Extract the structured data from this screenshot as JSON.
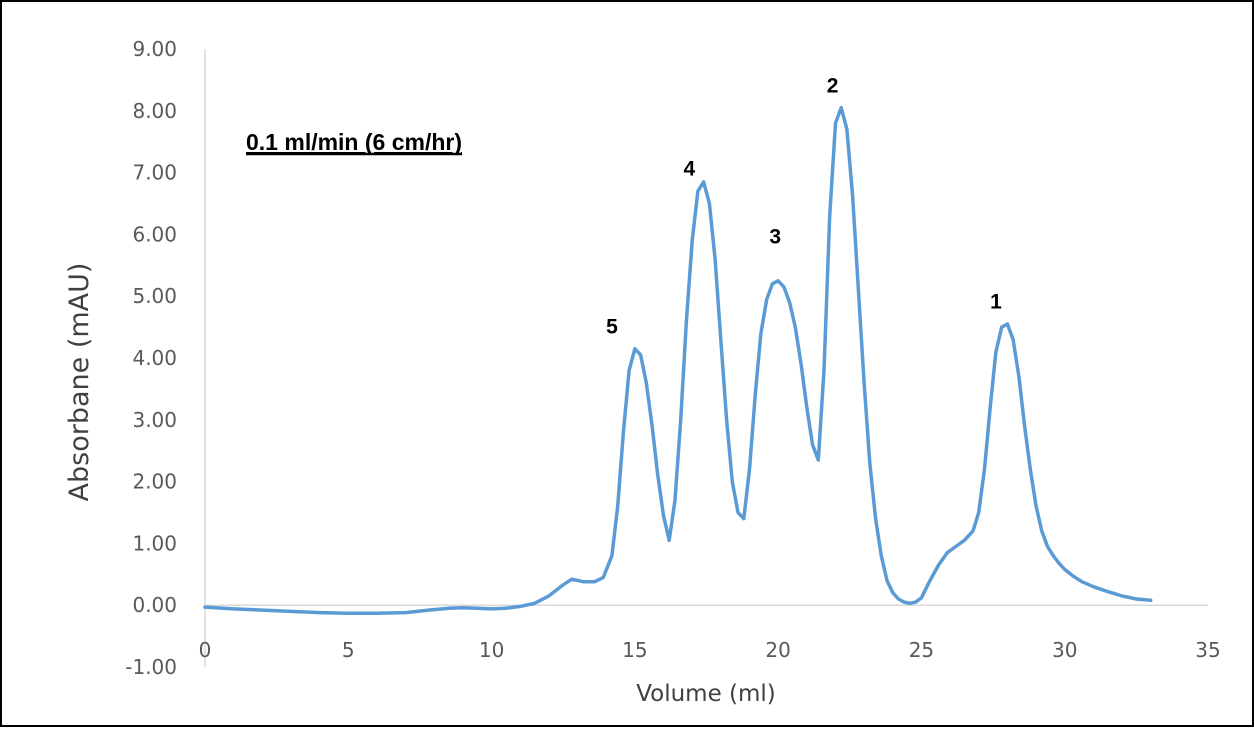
{
  "chart_data": {
    "type": "line",
    "title": "",
    "annotation": "0.1 ml/min (6 cm/hr)",
    "xlabel": "Volume (ml)",
    "ylabel": "Absorbane (mAU)",
    "xlim": [
      0,
      35
    ],
    "ylim": [
      -1,
      9
    ],
    "x_ticks": [
      0,
      5,
      10,
      15,
      20,
      25,
      30,
      35
    ],
    "y_ticks": [
      -1,
      0,
      1,
      2,
      3,
      4,
      5,
      6,
      7,
      8,
      9
    ],
    "x_tick_labels": [
      "0",
      "5",
      "10",
      "15",
      "20",
      "25",
      "30",
      "35"
    ],
    "y_tick_labels": [
      "-1.00",
      "0.00",
      "1.00",
      "2.00",
      "3.00",
      "4.00",
      "5.00",
      "6.00",
      "7.00",
      "8.00",
      "9.00"
    ],
    "grid": false,
    "line_color": "#5B9BD5",
    "peak_labels": [
      {
        "text": "5",
        "x": 14.2,
        "y": 4.4
      },
      {
        "text": "4",
        "x": 16.9,
        "y": 6.95
      },
      {
        "text": "3",
        "x": 19.9,
        "y": 5.85
      },
      {
        "text": "2",
        "x": 21.9,
        "y": 8.3
      },
      {
        "text": "1",
        "x": 27.6,
        "y": 4.8
      }
    ],
    "series": [
      {
        "x": [
          0,
          1,
          2,
          3,
          4,
          5,
          6,
          7,
          7.8,
          8.5,
          9,
          9.5,
          10,
          10.5,
          11,
          11.5,
          12,
          12.5,
          12.8,
          13.2,
          13.6,
          13.9,
          14.2,
          14.4,
          14.6,
          14.8,
          15,
          15.2,
          15.4,
          15.6,
          15.8,
          16,
          16.2,
          16.4,
          16.6,
          16.8,
          17,
          17.2,
          17.4,
          17.6,
          17.8,
          18,
          18.2,
          18.4,
          18.6,
          18.8,
          19,
          19.2,
          19.4,
          19.6,
          19.8,
          20,
          20.2,
          20.4,
          20.6,
          20.8,
          21,
          21.2,
          21.4,
          21.6,
          21.8,
          22,
          22.2,
          22.4,
          22.6,
          22.8,
          23,
          23.2,
          23.4,
          23.6,
          23.8,
          24,
          24.2,
          24.4,
          24.6,
          24.8,
          25,
          25.3,
          25.6,
          25.9,
          26.2,
          26.5,
          26.8,
          27,
          27.2,
          27.4,
          27.6,
          27.8,
          28,
          28.2,
          28.4,
          28.6,
          28.8,
          29,
          29.2,
          29.4,
          29.6,
          29.8,
          30,
          30.3,
          30.6,
          31,
          31.5,
          32,
          32.5,
          33
        ],
        "y": [
          -0.03,
          -0.06,
          -0.08,
          -0.1,
          -0.12,
          -0.13,
          -0.13,
          -0.12,
          -0.08,
          -0.05,
          -0.04,
          -0.05,
          -0.06,
          -0.05,
          -0.02,
          0.03,
          0.15,
          0.33,
          0.42,
          0.38,
          0.38,
          0.45,
          0.8,
          1.6,
          2.8,
          3.8,
          4.15,
          4.05,
          3.6,
          2.9,
          2.1,
          1.45,
          1.05,
          1.7,
          3.0,
          4.6,
          5.9,
          6.7,
          6.85,
          6.5,
          5.6,
          4.3,
          3.0,
          2.0,
          1.5,
          1.4,
          2.2,
          3.4,
          4.4,
          4.95,
          5.2,
          5.25,
          5.15,
          4.9,
          4.5,
          3.9,
          3.2,
          2.6,
          2.35,
          3.8,
          6.3,
          7.8,
          8.05,
          7.7,
          6.6,
          5.1,
          3.6,
          2.3,
          1.4,
          0.8,
          0.4,
          0.2,
          0.1,
          0.05,
          0.03,
          0.05,
          0.12,
          0.4,
          0.65,
          0.85,
          0.95,
          1.05,
          1.2,
          1.5,
          2.2,
          3.2,
          4.1,
          4.5,
          4.55,
          4.3,
          3.7,
          2.9,
          2.2,
          1.6,
          1.2,
          0.95,
          0.8,
          0.68,
          0.58,
          0.47,
          0.38,
          0.3,
          0.22,
          0.15,
          0.1,
          0.08
        ]
      }
    ]
  }
}
